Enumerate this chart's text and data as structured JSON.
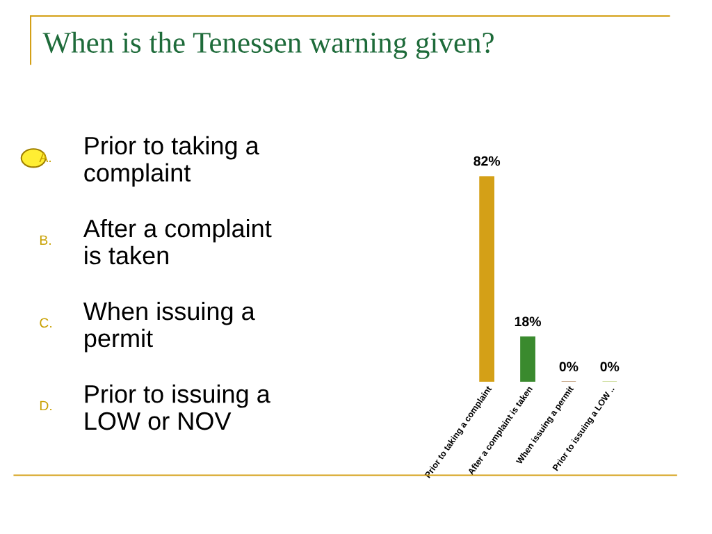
{
  "chart_data": {
    "type": "bar",
    "title": "When is the Tenessen warning given?",
    "categories": [
      "Prior to taking a complaint",
      "After a complaint is taken",
      "When issuing a permit",
      "Prior to issuing a LOW .."
    ],
    "values": [
      82,
      18,
      0,
      0
    ],
    "colors": [
      "#d4a017",
      "#3a8a2e",
      "#8b4a0a",
      "#9bbb3b"
    ],
    "value_labels": [
      "82%",
      "18%",
      "0%",
      "0%"
    ],
    "annotations": [
      "A.",
      "Prior to taking a\ncomplaint",
      "B.",
      "After a complaint\nis taken",
      "C.",
      "When issuing a\npermit",
      "D.",
      "Prior to issuing a\nLOW or NOV"
    ],
    "grid": false,
    "legend": false
  }
}
